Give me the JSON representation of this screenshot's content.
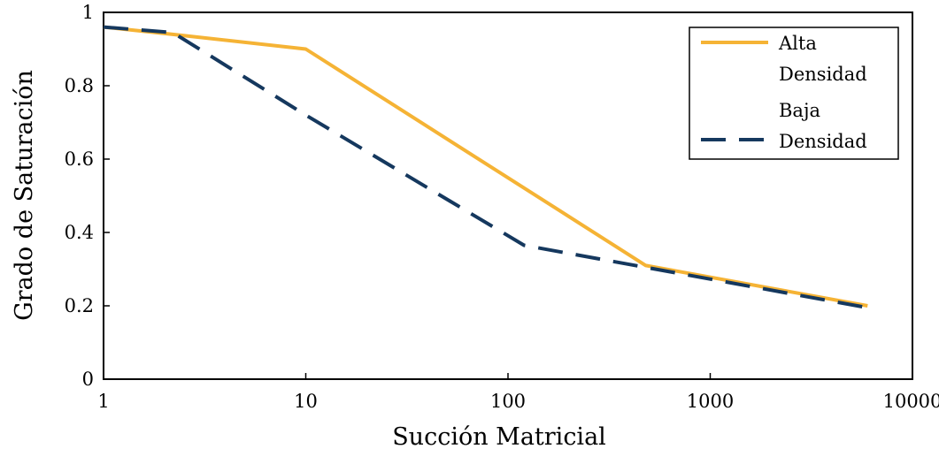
{
  "chart_data": {
    "type": "line",
    "x_scale": "log",
    "xlabel": "Succión Matricial",
    "ylabel": "Grado de Saturación",
    "xlim": [
      1,
      10000
    ],
    "ylim": [
      0,
      1
    ],
    "x_ticks": [
      "1",
      "10",
      "100",
      "1000",
      "10000"
    ],
    "y_ticks": [
      "0",
      "0.2",
      "0.4",
      "0.6",
      "0.8",
      "1"
    ],
    "grid": false,
    "legend_position": "top-right",
    "series": [
      {
        "name": "Alta Densidad",
        "legend_lines": [
          "Alta",
          "Densidad"
        ],
        "color": "#f5b335",
        "dash": "solid",
        "x": [
          1,
          2.2,
          10,
          480,
          6000
        ],
        "y": [
          0.96,
          0.94,
          0.9,
          0.31,
          0.2
        ]
      },
      {
        "name": "Baja Densidad",
        "legend_lines": [
          "Baja",
          "Densidad"
        ],
        "color": "#15385e",
        "dash": "dashed",
        "x": [
          1,
          2.2,
          10,
          120,
          6000
        ],
        "y": [
          0.96,
          0.945,
          0.72,
          0.365,
          0.195
        ]
      }
    ]
  }
}
